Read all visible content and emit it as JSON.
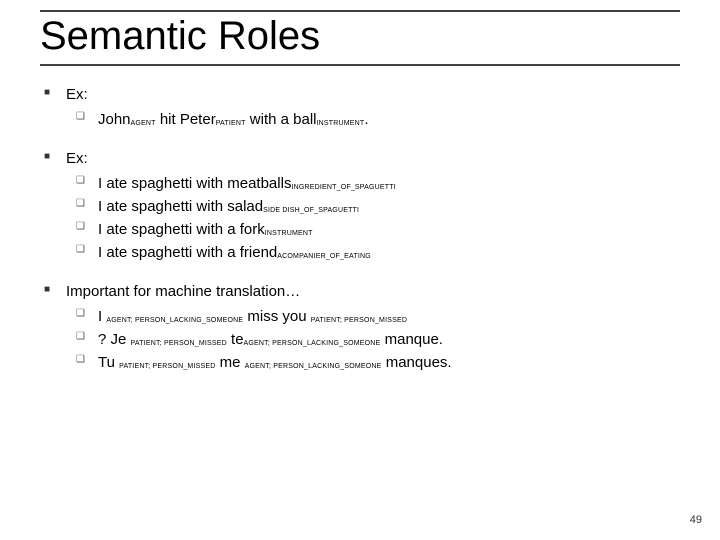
{
  "title": "Semantic Roles",
  "page_number": "49",
  "colors": {
    "rule": "#404040",
    "text": "#000000",
    "bg": "#ffffff"
  },
  "blocks": [
    {
      "heading": "Ex:",
      "items": [
        {
          "parts": [
            {
              "t": "John"
            },
            {
              "r": "AGENT"
            },
            {
              "t": " hit Peter"
            },
            {
              "r": "PATIENT"
            },
            {
              "t": " with a ball"
            },
            {
              "r": "INSTRUMENT"
            },
            {
              "t": "."
            }
          ]
        }
      ]
    },
    {
      "heading": "Ex:",
      "items": [
        {
          "parts": [
            {
              "t": "I ate spaghetti with meatballs"
            },
            {
              "r": "INGREDIENT_OF_SPAGUETTI"
            }
          ]
        },
        {
          "parts": [
            {
              "t": "I ate spaghetti with salad"
            },
            {
              "r": "SIDE DISH_OF_SPAGUETTI"
            }
          ]
        },
        {
          "parts": [
            {
              "t": "I ate spaghetti with a fork"
            },
            {
              "r": "INSTRUMENT"
            }
          ]
        },
        {
          "parts": [
            {
              "t": "I ate spaghetti with a friend"
            },
            {
              "r": "ACOMPANIER_OF_EATING"
            }
          ]
        }
      ]
    },
    {
      "heading": "Important for machine translation…",
      "items": [
        {
          "parts": [
            {
              "t": "I "
            },
            {
              "r": "AGENT; PERSON_LACKING_SOMEONE"
            },
            {
              "t": " miss you "
            },
            {
              "r": "PATIENT; PERSON_MISSED"
            }
          ]
        },
        {
          "parts": [
            {
              "t": "? Je "
            },
            {
              "r": "PATIENT; PERSON_MISSED"
            },
            {
              "t": " te"
            },
            {
              "r": "AGENT; PERSON_LACKING_SOMEONE"
            },
            {
              "t": " manque."
            }
          ]
        },
        {
          "parts": [
            {
              "t": "Tu "
            },
            {
              "r": "PATIENT; PERSON_MISSED"
            },
            {
              "t": " me "
            },
            {
              "r": "AGENT; PERSON_LACKING_SOMEONE"
            },
            {
              "t": " manques."
            }
          ]
        }
      ]
    }
  ]
}
